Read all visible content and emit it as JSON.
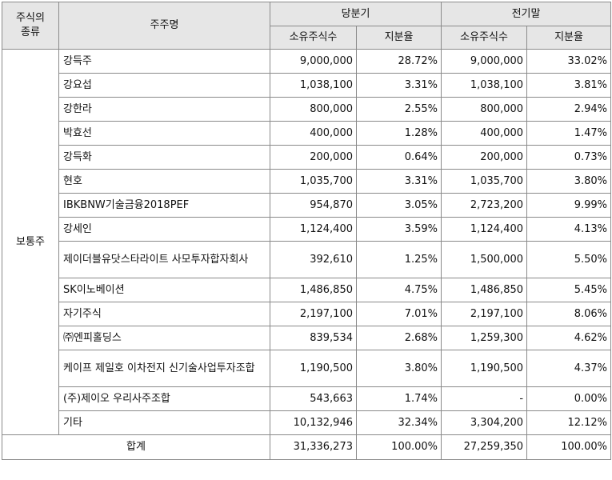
{
  "header": {
    "type_label_line1": "주식의",
    "type_label_line2": "종류",
    "holder_label": "주주명",
    "current_period": "당분기",
    "prior_period": "전기말",
    "shares_label": "소유주식수",
    "ratio_label": "지분율"
  },
  "share_type": "보통주",
  "rows": [
    {
      "name": "강득주",
      "cur_shares": "9,000,000",
      "cur_ratio": "28.72%",
      "prev_shares": "9,000,000",
      "prev_ratio": "33.02%"
    },
    {
      "name": "강요섭",
      "cur_shares": "1,038,100",
      "cur_ratio": "3.31%",
      "prev_shares": "1,038,100",
      "prev_ratio": "3.81%"
    },
    {
      "name": "강한라",
      "cur_shares": "800,000",
      "cur_ratio": "2.55%",
      "prev_shares": "800,000",
      "prev_ratio": "2.94%"
    },
    {
      "name": "박효선",
      "cur_shares": "400,000",
      "cur_ratio": "1.28%",
      "prev_shares": "400,000",
      "prev_ratio": "1.47%"
    },
    {
      "name": "강득화",
      "cur_shares": "200,000",
      "cur_ratio": "0.64%",
      "prev_shares": "200,000",
      "prev_ratio": "0.73%"
    },
    {
      "name": "현호",
      "cur_shares": "1,035,700",
      "cur_ratio": "3.31%",
      "prev_shares": "1,035,700",
      "prev_ratio": "3.80%"
    },
    {
      "name": "IBKBNW기술금융2018PEF",
      "cur_shares": "954,870",
      "cur_ratio": "3.05%",
      "prev_shares": "2,723,200",
      "prev_ratio": "9.99%"
    },
    {
      "name": "강세인",
      "cur_shares": "1,124,400",
      "cur_ratio": "3.59%",
      "prev_shares": "1,124,400",
      "prev_ratio": "4.13%"
    },
    {
      "name": "제이더블유닷스타라이트 사모투자합자회사",
      "cur_shares": "392,610",
      "cur_ratio": "1.25%",
      "prev_shares": "1,500,000",
      "prev_ratio": "5.50%"
    },
    {
      "name": "SK이노베이션",
      "cur_shares": "1,486,850",
      "cur_ratio": "4.75%",
      "prev_shares": "1,486,850",
      "prev_ratio": "5.45%"
    },
    {
      "name": "자기주식",
      "cur_shares": "2,197,100",
      "cur_ratio": "7.01%",
      "prev_shares": "2,197,100",
      "prev_ratio": "8.06%"
    },
    {
      "name": "㈜엔피홀딩스",
      "cur_shares": "839,534",
      "cur_ratio": "2.68%",
      "prev_shares": "1,259,300",
      "prev_ratio": "4.62%"
    },
    {
      "name": "케이프 제일호 이차전지 신기술사업투자조합",
      "cur_shares": "1,190,500",
      "cur_ratio": "3.80%",
      "prev_shares": "1,190,500",
      "prev_ratio": "4.37%"
    },
    {
      "name": "(주)제이오 우리사주조합",
      "cur_shares": "543,663",
      "cur_ratio": "1.74%",
      "prev_shares": "-",
      "prev_ratio": "0.00%"
    },
    {
      "name": "기타",
      "cur_shares": "10,132,946",
      "cur_ratio": "32.34%",
      "prev_shares": "3,304,200",
      "prev_ratio": "12.12%"
    }
  ],
  "total": {
    "label": "합계",
    "cur_shares": "31,336,273",
    "cur_ratio": "100.00%",
    "prev_shares": "27,259,350",
    "prev_ratio": "100.00%"
  }
}
